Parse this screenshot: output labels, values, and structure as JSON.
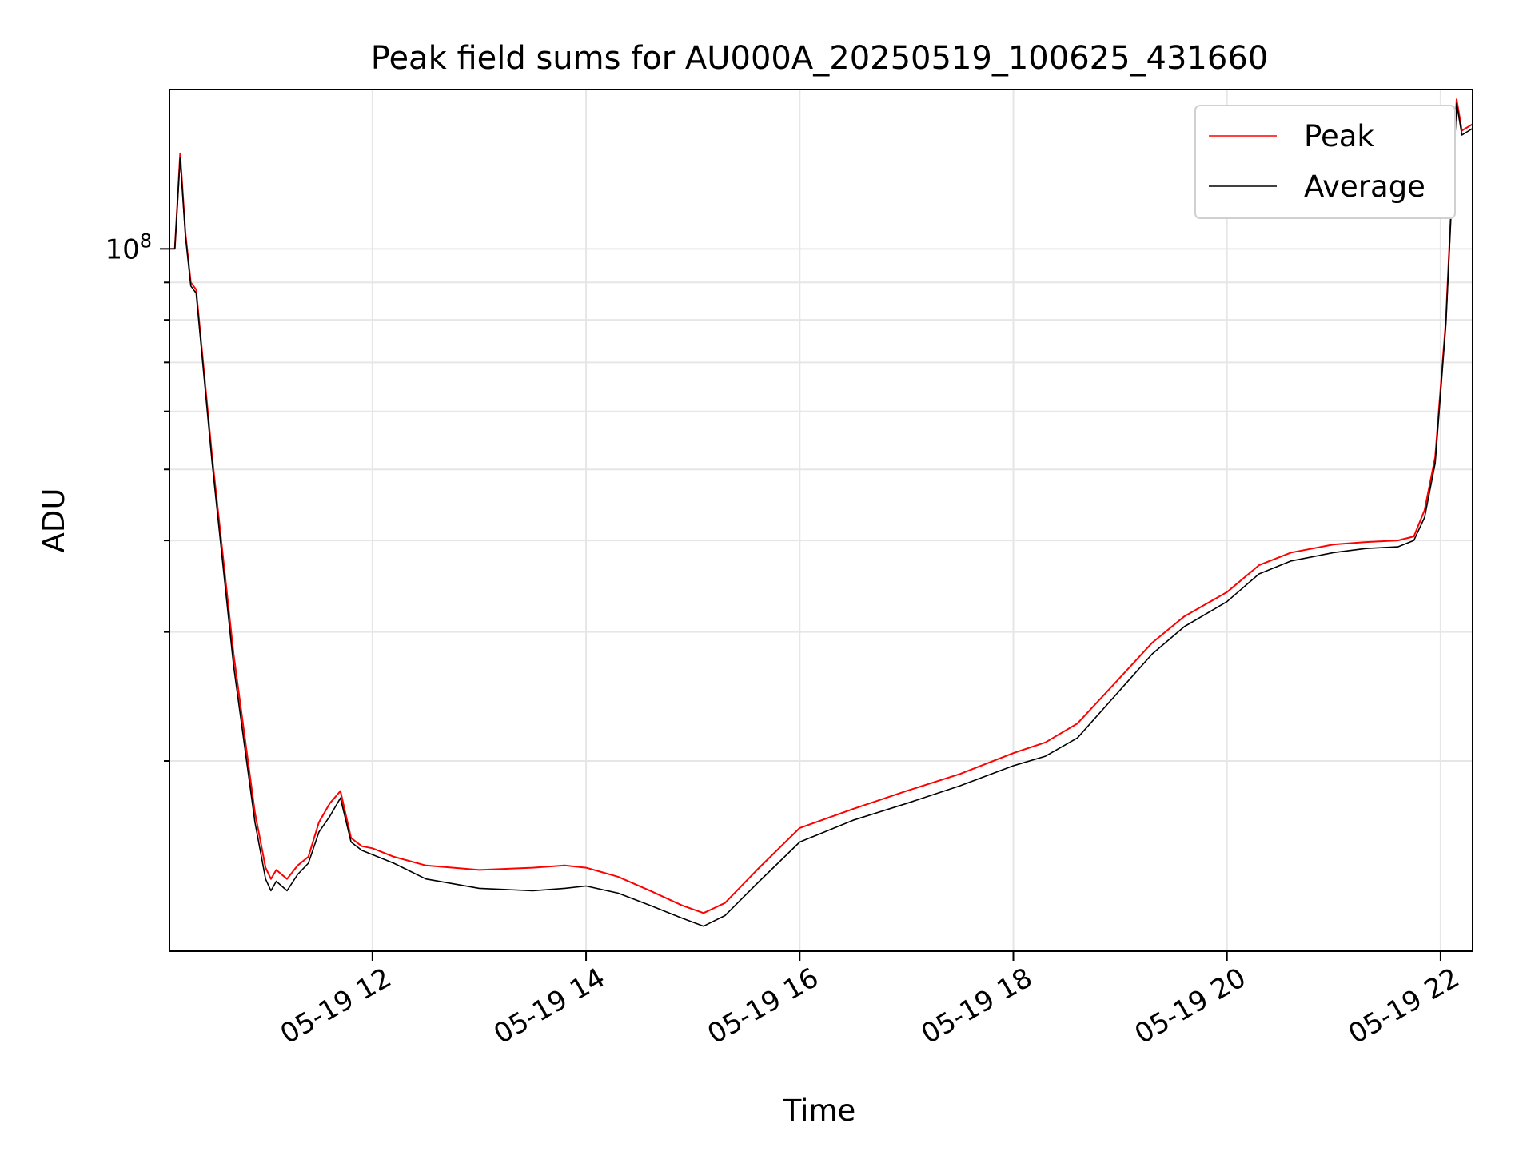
{
  "chart_data": {
    "type": "line",
    "title": "Peak field sums for AU000A_20250519_100625_431660",
    "xlabel": "Time",
    "ylabel": "ADU",
    "x_unit": "hours on 2025-05-19",
    "xlim": [
      10.1,
      22.3
    ],
    "ylim": [
      11000000,
      165000000
    ],
    "yscale": "log",
    "grid": true,
    "legend_position": "top-right",
    "x_ticks": [
      {
        "value": 12,
        "label": "05-19 12"
      },
      {
        "value": 14,
        "label": "05-19 14"
      },
      {
        "value": 16,
        "label": "05-19 16"
      },
      {
        "value": 18,
        "label": "05-19 18"
      },
      {
        "value": 20,
        "label": "05-19 20"
      },
      {
        "value": 22,
        "label": "05-19 22"
      }
    ],
    "y_major_ticks": [
      {
        "value": 100000000,
        "base": "10",
        "exp": "8"
      }
    ],
    "y_minor_ticks": [
      20000000,
      30000000,
      40000000,
      50000000,
      60000000,
      70000000,
      80000000,
      90000000
    ],
    "series": [
      {
        "name": "Peak",
        "color": "#ff0000",
        "x": [
          10.1,
          10.15,
          10.2,
          10.25,
          10.3,
          10.35,
          10.5,
          10.7,
          10.9,
          11.0,
          11.05,
          11.1,
          11.2,
          11.3,
          11.4,
          11.5,
          11.6,
          11.7,
          11.8,
          11.9,
          12.0,
          12.2,
          12.5,
          13.0,
          13.5,
          13.8,
          14.0,
          14.3,
          14.6,
          14.9,
          15.1,
          15.3,
          15.6,
          16.0,
          16.5,
          17.0,
          17.5,
          18.0,
          18.3,
          18.6,
          19.0,
          19.3,
          19.6,
          20.0,
          20.3,
          20.6,
          21.0,
          21.3,
          21.6,
          21.75,
          21.85,
          21.95,
          22.05,
          22.1,
          22.15,
          22.2,
          22.3
        ],
        "values": [
          100000000,
          100000000,
          135000000,
          105000000,
          90000000,
          88000000,
          52000000,
          28000000,
          17000000,
          14300000,
          13800000,
          14200000,
          13800000,
          14400000,
          14800000,
          16500000,
          17500000,
          18200000,
          15700000,
          15300000,
          15200000,
          14800000,
          14400000,
          14200000,
          14300000,
          14400000,
          14300000,
          13900000,
          13300000,
          12700000,
          12400000,
          12800000,
          14200000,
          16200000,
          17200000,
          18200000,
          19200000,
          20500000,
          21200000,
          22500000,
          26000000,
          29000000,
          31500000,
          34000000,
          37000000,
          38500000,
          39500000,
          39800000,
          40000000,
          40500000,
          44000000,
          52000000,
          80000000,
          115000000,
          160000000,
          145000000,
          148000000
        ]
      },
      {
        "name": "Average",
        "color": "#000000",
        "x": [
          10.1,
          10.15,
          10.2,
          10.25,
          10.3,
          10.35,
          10.5,
          10.7,
          10.9,
          11.0,
          11.05,
          11.1,
          11.2,
          11.3,
          11.4,
          11.5,
          11.6,
          11.7,
          11.8,
          11.9,
          12.0,
          12.2,
          12.5,
          13.0,
          13.5,
          13.8,
          14.0,
          14.3,
          14.6,
          14.9,
          15.1,
          15.3,
          15.6,
          16.0,
          16.5,
          17.0,
          17.5,
          18.0,
          18.3,
          18.6,
          19.0,
          19.3,
          19.6,
          20.0,
          20.3,
          20.6,
          21.0,
          21.3,
          21.6,
          21.75,
          21.85,
          21.95,
          22.05,
          22.1,
          22.15,
          22.2,
          22.3
        ],
        "values": [
          100000000,
          100000000,
          133000000,
          104000000,
          89000000,
          87000000,
          51000000,
          27000000,
          16500000,
          13800000,
          13300000,
          13700000,
          13300000,
          14000000,
          14500000,
          16000000,
          16800000,
          17800000,
          15500000,
          15100000,
          14900000,
          14500000,
          13800000,
          13400000,
          13300000,
          13400000,
          13500000,
          13200000,
          12700000,
          12200000,
          11900000,
          12300000,
          13600000,
          15500000,
          16600000,
          17500000,
          18500000,
          19700000,
          20300000,
          21500000,
          25000000,
          28000000,
          30500000,
          33000000,
          36000000,
          37500000,
          38500000,
          39000000,
          39200000,
          40000000,
          43000000,
          51000000,
          79000000,
          113000000,
          158000000,
          143000000,
          146000000
        ]
      }
    ]
  }
}
